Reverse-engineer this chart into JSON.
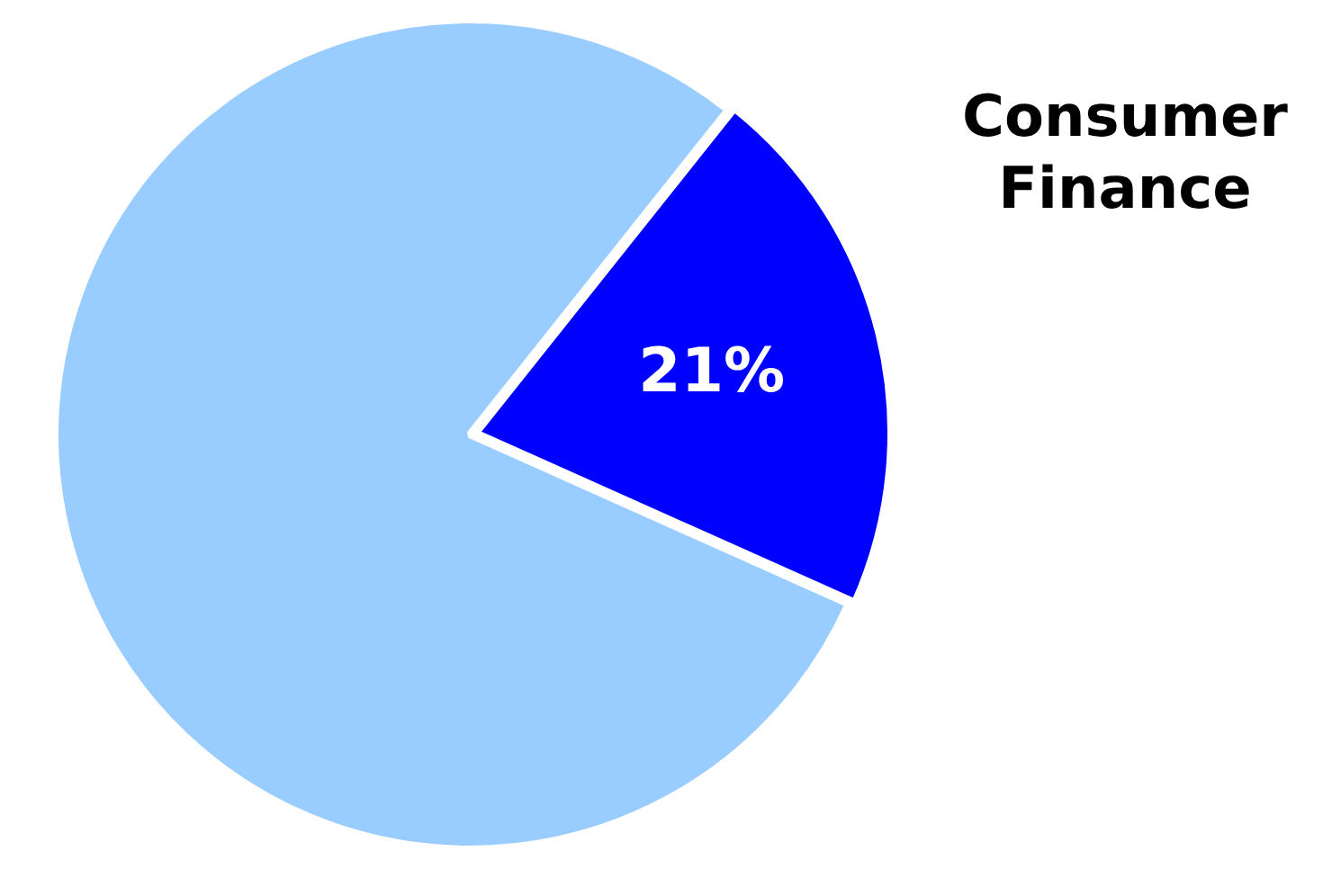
{
  "chart_data": {
    "type": "pie",
    "categories": [
      "Consumer Finance",
      null
    ],
    "values": [
      21,
      79
    ],
    "colors": [
      "#0000ff",
      "#99ccff"
    ],
    "value_labels": [
      "21%",
      null
    ],
    "legend": false
  }
}
